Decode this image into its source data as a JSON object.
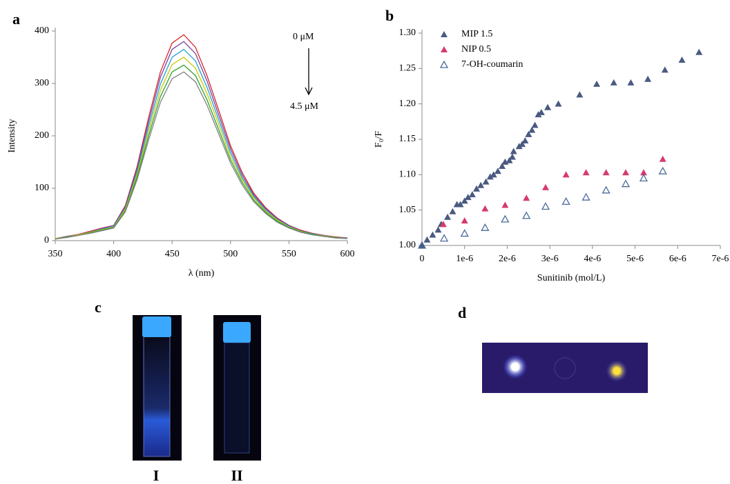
{
  "panel_labels": [
    "a",
    "b",
    "c",
    "d"
  ],
  "photo_labels": [
    "I",
    "II"
  ],
  "chart_data": [
    {
      "type": "line",
      "ylabel": "Intensity",
      "xlabel": "λ  (nm)",
      "annotations": [
        "0 μM",
        "4.5 μM"
      ],
      "xlim": [
        350,
        600
      ],
      "xticks": [
        350,
        400,
        450,
        500,
        550,
        600
      ],
      "ylim": [
        0,
        400
      ],
      "yticks": [
        0,
        100,
        200,
        300,
        400
      ],
      "x": [
        350,
        360,
        370,
        380,
        390,
        400,
        410,
        420,
        430,
        440,
        450,
        460,
        470,
        480,
        490,
        500,
        510,
        520,
        530,
        540,
        550,
        560,
        570,
        580,
        590,
        600
      ],
      "series": [
        {
          "color": "#d62728",
          "values": [
            4,
            8,
            12,
            18,
            24,
            29,
            67,
            141,
            236,
            322,
            377,
            393,
            369,
            314,
            248,
            181,
            130,
            90,
            63,
            43,
            29,
            20,
            14,
            10,
            7,
            5
          ]
        },
        {
          "color": "#7b3f9e",
          "values": [
            4,
            8,
            11,
            17,
            23,
            29,
            65,
            137,
            228,
            312,
            365,
            380,
            357,
            304,
            239,
            175,
            125,
            87,
            61,
            42,
            29,
            19,
            13,
            10,
            6,
            5
          ]
        },
        {
          "color": "#1f9fd4",
          "values": [
            4,
            7,
            11,
            16,
            22,
            27,
            62,
            131,
            219,
            299,
            350,
            365,
            343,
            292,
            230,
            168,
            120,
            84,
            58,
            40,
            27,
            18,
            13,
            9,
            6,
            4
          ]
        },
        {
          "color": "#c8c800",
          "values": [
            4,
            7,
            11,
            16,
            21,
            26,
            60,
            126,
            210,
            287,
            336,
            350,
            329,
            280,
            221,
            161,
            116,
            81,
            56,
            39,
            26,
            18,
            12,
            9,
            6,
            4
          ]
        },
        {
          "color": "#2ca02c",
          "values": [
            3,
            7,
            10,
            15,
            20,
            25,
            57,
            121,
            201,
            275,
            322,
            335,
            315,
            268,
            211,
            154,
            111,
            77,
            54,
            37,
            25,
            17,
            12,
            8,
            6,
            4
          ]
        },
        {
          "color": "#808080",
          "values": [
            3,
            6,
            10,
            14,
            19,
            24,
            55,
            116,
            193,
            264,
            309,
            322,
            303,
            258,
            203,
            148,
            106,
            74,
            52,
            35,
            24,
            16,
            11,
            8,
            5,
            4
          ]
        }
      ]
    },
    {
      "type": "scatter",
      "ylabel": "F₀/F",
      "xlabel": "Sunitinib (mol/L)",
      "xlim": [
        0,
        7e-06
      ],
      "xticks": [
        0,
        {
          "value": 1e-06,
          "label": "1e-6"
        },
        {
          "value": 2e-06,
          "label": "2e-6"
        },
        {
          "value": 3e-06,
          "label": "3e-6"
        },
        {
          "value": 4e-06,
          "label": "4e-6"
        },
        {
          "value": 5e-06,
          "label": "5e-6"
        },
        {
          "value": 6e-06,
          "label": "6e-6"
        },
        {
          "value": 7e-06,
          "label": "7e-6"
        }
      ],
      "ylim": [
        1,
        1.3
      ],
      "yticks": [
        {
          "value": 1,
          "label": "1.00"
        },
        {
          "value": 1.05,
          "label": "1.05"
        },
        {
          "value": 1.1,
          "label": "1.10"
        },
        {
          "value": 1.15,
          "label": "1.15"
        },
        {
          "value": 1.2,
          "label": "1.20"
        },
        {
          "value": 1.25,
          "label": "1.25"
        },
        {
          "value": 1.3,
          "label": "1.30"
        }
      ],
      "series": [
        {
          "name": "MIP 1.5",
          "color": "#4a5a80",
          "filled": true,
          "x": [
            0,
            1.2e-07,
            2.5e-07,
            3.8e-07,
            4.5e-07,
            6e-07,
            7.2e-07,
            8.2e-07,
            9e-07,
            1e-06,
            1.08e-06,
            1.18e-06,
            1.28e-06,
            1.38e-06,
            1.5e-06,
            1.6e-06,
            1.68e-06,
            1.78e-06,
            1.88e-06,
            1.95e-06,
            2.05e-06,
            2.12e-06,
            2.15e-06,
            2.28e-06,
            2.35e-06,
            2.42e-06,
            2.5e-06,
            2.58e-06,
            2.65e-06,
            2.73e-06,
            2.8e-06,
            2.95e-06,
            3.2e-06,
            3.7e-06,
            4.1e-06,
            4.5e-06,
            4.9e-06,
            5.3e-06,
            5.7e-06,
            6.1e-06,
            6.5e-06
          ],
          "values": [
            1,
            1.008,
            1.015,
            1.022,
            1.03,
            1.04,
            1.048,
            1.058,
            1.058,
            1.063,
            1.068,
            1.072,
            1.08,
            1.085,
            1.09,
            1.097,
            1.1,
            1.105,
            1.112,
            1.118,
            1.12,
            1.125,
            1.133,
            1.14,
            1.143,
            1.148,
            1.157,
            1.163,
            1.17,
            1.185,
            1.188,
            1.195,
            1.2,
            1.213,
            1.228,
            1.23,
            1.23,
            1.235,
            1.248,
            1.262,
            1.273
          ]
        },
        {
          "name": "NIP 0.5",
          "color": "#d63a6e",
          "filled": true,
          "x": [
            5e-07,
            1e-06,
            1.48e-06,
            1.95e-06,
            2.45e-06,
            2.9e-06,
            3.38e-06,
            3.85e-06,
            4.32e-06,
            4.78e-06,
            5.2e-06,
            5.65e-06
          ],
          "values": [
            1.03,
            1.035,
            1.052,
            1.057,
            1.067,
            1.082,
            1.1,
            1.103,
            1.103,
            1.103,
            1.103,
            1.122
          ]
        },
        {
          "name": "7-OH-coumarin",
          "color": "#4a6a9a",
          "filled": false,
          "x": [
            0,
            5.2e-07,
            1e-06,
            1.48e-06,
            1.95e-06,
            2.45e-06,
            2.9e-06,
            3.38e-06,
            3.85e-06,
            4.32e-06,
            4.78e-06,
            5.2e-06,
            5.65e-06
          ],
          "values": [
            1,
            1.01,
            1.017,
            1.025,
            1.037,
            1.042,
            1.055,
            1.062,
            1.068,
            1.078,
            1.087,
            1.095,
            1.105
          ]
        }
      ]
    }
  ]
}
